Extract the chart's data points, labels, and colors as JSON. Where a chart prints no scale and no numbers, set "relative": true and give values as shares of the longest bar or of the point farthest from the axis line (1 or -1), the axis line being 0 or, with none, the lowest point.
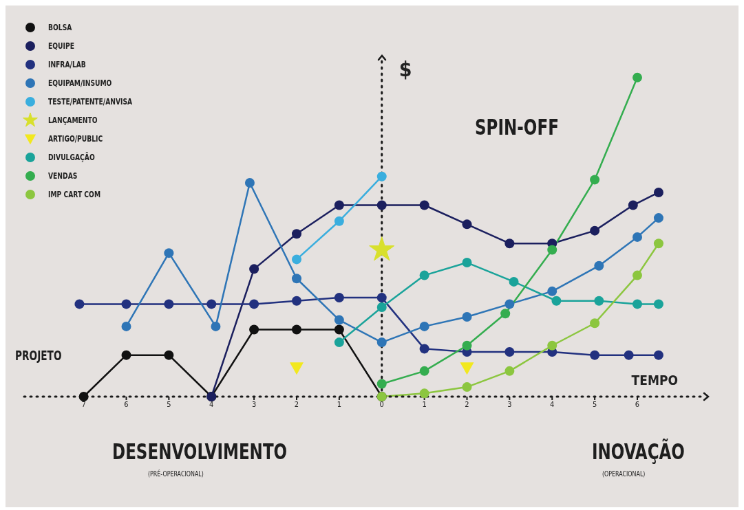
{
  "chart_data": {
    "type": "line",
    "relative": true,
    "xlabel": "TEMPO",
    "ylabel": "$",
    "legend": "top left",
    "marker": "circle",
    "xlim": [
      -8.4,
      7.6
    ],
    "xticks": [
      {
        "value": -7,
        "label": "7"
      },
      {
        "value": -6,
        "label": "6"
      },
      {
        "value": -5,
        "label": "5"
      },
      {
        "value": -4,
        "label": "4"
      },
      {
        "value": -3,
        "label": "3"
      },
      {
        "value": -2,
        "label": "2"
      },
      {
        "value": -1,
        "label": "1"
      },
      0,
      1,
      2,
      3,
      4,
      5,
      6
    ],
    "ref_lines": [
      {
        "axis": "x",
        "value": 0,
        "line_style": "dotted"
      }
    ],
    "annotations": [
      "PROJETO",
      "SPIN-OFF",
      "DESENVOLVIMENTO",
      "(PRÉ-OPERACIONAL)",
      "INOVAÇÃO",
      "(OPERACIONAL)"
    ],
    "series": [
      {
        "name": "BOLSA",
        "color": "#111111",
        "x": [
          -7,
          -6,
          -5,
          -4,
          -3,
          -2,
          -1,
          0
        ],
        "values": [
          0,
          0.13,
          0.13,
          0,
          0.21,
          0.21,
          0.21,
          0
        ]
      },
      {
        "name": "EQUIPE",
        "color": "#1b1f5e",
        "x": [
          -4,
          -3,
          -2,
          -1,
          0,
          1,
          2,
          3,
          4,
          5,
          5.9,
          6.5
        ],
        "values": [
          0,
          0.4,
          0.51,
          0.6,
          0.6,
          0.6,
          0.54,
          0.48,
          0.48,
          0.52,
          0.6,
          0.64
        ]
      },
      {
        "name": "INFRA/LAB",
        "color": "#22317f",
        "x": [
          -7.1,
          -6,
          -5,
          -4,
          -3,
          -2,
          -1,
          0,
          1,
          2,
          3,
          4,
          5,
          5.8,
          6.5
        ],
        "values": [
          0.29,
          0.29,
          0.29,
          0.29,
          0.29,
          0.3,
          0.31,
          0.31,
          0.15,
          0.14,
          0.14,
          0.14,
          0.13,
          0.13,
          0.13
        ]
      },
      {
        "name": "EQUIPAM/INSUMO",
        "color": "#2e75b6",
        "x": [
          -6,
          -5,
          -3.9,
          -3.1,
          -2,
          -1,
          0,
          1,
          2,
          3,
          4,
          5.1,
          6,
          6.5
        ],
        "values": [
          0.22,
          0.45,
          0.22,
          0.67,
          0.37,
          0.24,
          0.17,
          0.22,
          0.25,
          0.29,
          0.33,
          0.41,
          0.5,
          0.56
        ]
      },
      {
        "name": "TESTE/PATENTE/ANVISA",
        "color": "#3aaede",
        "x": [
          -2,
          -1,
          0
        ],
        "values": [
          0.43,
          0.55,
          0.69
        ]
      },
      {
        "name": "LANÇAMENTO",
        "color": "#d8e02c",
        "type": "scatter",
        "marker": "star",
        "x": [
          0
        ],
        "values": [
          0.46
        ]
      },
      {
        "name": "ARTIGO/PUBLIC",
        "color": "#f2e81e",
        "type": "scatter",
        "marker": "triangle",
        "x": [
          -2,
          2
        ],
        "values": [
          0.09,
          0.09
        ]
      },
      {
        "name": "DIVULGAÇÃO",
        "color": "#1aa39a",
        "x": [
          -1,
          0,
          1,
          2,
          3.1,
          4.1,
          5.1,
          6,
          6.5
        ],
        "values": [
          0.17,
          0.28,
          0.38,
          0.42,
          0.36,
          0.3,
          0.3,
          0.29,
          0.29
        ]
      },
      {
        "name": "VENDAS",
        "color": "#34ad4f",
        "x": [
          0,
          1,
          2,
          2.9,
          4,
          5,
          6
        ],
        "values": [
          0.04,
          0.08,
          0.16,
          0.26,
          0.46,
          0.68,
          1
        ]
      },
      {
        "name": "IMP CART COM",
        "color": "#8cc63f",
        "x": [
          0,
          1,
          2,
          3,
          4,
          5,
          6,
          6.5
        ],
        "values": [
          0,
          0.01,
          0.03,
          0.08,
          0.16,
          0.23,
          0.38,
          0.48
        ]
      }
    ]
  }
}
